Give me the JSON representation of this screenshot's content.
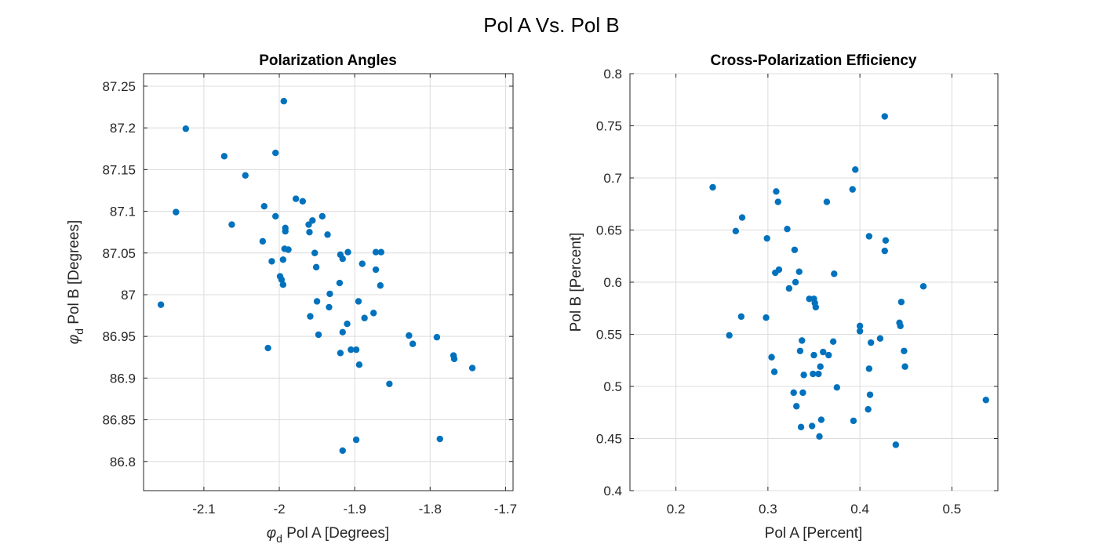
{
  "figure": {
    "title": "Pol A Vs. Pol B"
  },
  "colors": {
    "marker": "#0072BD",
    "grid": "#dcdcdc",
    "axis": "#262626"
  },
  "chart_data": [
    {
      "type": "scatter",
      "title": "Polarization Angles",
      "xlabel": {
        "symbol": "φ",
        "sub": "d",
        "text": " Pol A [Degrees]"
      },
      "ylabel": {
        "symbol": "φ",
        "sub": "d",
        "text": " Pol B [Degrees]"
      },
      "xlim": [
        -2.18,
        -1.69
      ],
      "ylim": [
        86.765,
        87.265
      ],
      "xticks": [
        -2.1,
        -2.0,
        -1.9,
        -1.8,
        -1.7
      ],
      "xtick_labels": [
        "-2.1",
        "-2",
        "-1.9",
        "-1.8",
        "-1.7"
      ],
      "yticks": [
        86.8,
        86.85,
        86.9,
        86.95,
        87.0,
        87.05,
        87.1,
        87.15,
        87.2,
        87.25
      ],
      "ytick_labels": [
        "86.8",
        "86.85",
        "86.9",
        "86.95",
        "87",
        "87.05",
        "87.1",
        "87.15",
        "87.2",
        "87.25"
      ],
      "grid": true,
      "points": [
        [
          -2.157,
          86.988
        ],
        [
          -2.124,
          87.199
        ],
        [
          -2.137,
          87.099
        ],
        [
          -2.073,
          87.166
        ],
        [
          -2.063,
          87.084
        ],
        [
          -2.045,
          87.143
        ],
        [
          -2.02,
          87.106
        ],
        [
          -2.022,
          87.064
        ],
        [
          -2.015,
          86.936
        ],
        [
          -2.01,
          87.04
        ],
        [
          -2.005,
          87.17
        ],
        [
          -2.005,
          87.094
        ],
        [
          -1.999,
          87.022
        ],
        [
          -1.997,
          87.018
        ],
        [
          -1.995,
          87.042
        ],
        [
          -1.995,
          87.012
        ],
        [
          -1.994,
          87.232
        ],
        [
          -1.993,
          87.055
        ],
        [
          -1.992,
          87.08
        ],
        [
          -1.992,
          87.076
        ],
        [
          -1.988,
          87.054
        ],
        [
          -1.978,
          87.115
        ],
        [
          -1.969,
          87.112
        ],
        [
          -1.961,
          87.084
        ],
        [
          -1.96,
          87.075
        ],
        [
          -1.956,
          87.089
        ],
        [
          -1.959,
          86.974
        ],
        [
          -1.953,
          87.05
        ],
        [
          -1.951,
          87.033
        ],
        [
          -1.95,
          86.992
        ],
        [
          -1.948,
          86.952
        ],
        [
          -1.943,
          87.094
        ],
        [
          -1.936,
          87.072
        ],
        [
          -1.934,
          86.985
        ],
        [
          -1.933,
          87.001
        ],
        [
          -1.92,
          87.014
        ],
        [
          -1.919,
          86.93
        ],
        [
          -1.919,
          87.048
        ],
        [
          -1.916,
          86.955
        ],
        [
          -1.916,
          87.043
        ],
        [
          -1.91,
          86.965
        ],
        [
          -1.909,
          87.051
        ],
        [
          -1.905,
          86.934
        ],
        [
          -1.898,
          86.934
        ],
        [
          -1.898,
          86.826
        ],
        [
          -1.895,
          86.992
        ],
        [
          -1.894,
          86.916
        ],
        [
          -1.89,
          87.037
        ],
        [
          -1.887,
          86.972
        ],
        [
          -1.916,
          86.813
        ],
        [
          -1.875,
          86.978
        ],
        [
          -1.872,
          87.03
        ],
        [
          -1.872,
          87.051
        ],
        [
          -1.865,
          87.051
        ],
        [
          -1.866,
          87.011
        ],
        [
          -1.854,
          86.893
        ],
        [
          -1.828,
          86.951
        ],
        [
          -1.823,
          86.941
        ],
        [
          -1.791,
          86.949
        ],
        [
          -1.787,
          86.827
        ],
        [
          -1.769,
          86.927
        ],
        [
          -1.768,
          86.923
        ],
        [
          -1.744,
          86.912
        ]
      ]
    },
    {
      "type": "scatter",
      "title": "Cross-Polarization Efficiency",
      "xlabel": {
        "text": "Pol A [Percent]"
      },
      "ylabel": {
        "text": "Pol B [Percent]"
      },
      "xlim": [
        0.15,
        0.55
      ],
      "ylim": [
        0.4,
        0.8
      ],
      "xticks": [
        0.2,
        0.3,
        0.4,
        0.5
      ],
      "xtick_labels": [
        "0.2",
        "0.3",
        "0.4",
        "0.5"
      ],
      "yticks": [
        0.4,
        0.45,
        0.5,
        0.55,
        0.6,
        0.65,
        0.7,
        0.75,
        0.8
      ],
      "ytick_labels": [
        "0.4",
        "0.45",
        "0.5",
        "0.55",
        "0.6",
        "0.65",
        "0.7",
        "0.75",
        "0.8"
      ],
      "grid": true,
      "points": [
        [
          0.24,
          0.691
        ],
        [
          0.258,
          0.549
        ],
        [
          0.265,
          0.649
        ],
        [
          0.271,
          0.567
        ],
        [
          0.272,
          0.662
        ],
        [
          0.298,
          0.566
        ],
        [
          0.299,
          0.642
        ],
        [
          0.304,
          0.528
        ],
        [
          0.307,
          0.514
        ],
        [
          0.308,
          0.609
        ],
        [
          0.309,
          0.687
        ],
        [
          0.311,
          0.677
        ],
        [
          0.312,
          0.612
        ],
        [
          0.321,
          0.651
        ],
        [
          0.323,
          0.594
        ],
        [
          0.328,
          0.494
        ],
        [
          0.329,
          0.631
        ],
        [
          0.33,
          0.6
        ],
        [
          0.331,
          0.481
        ],
        [
          0.334,
          0.61
        ],
        [
          0.335,
          0.534
        ],
        [
          0.336,
          0.461
        ],
        [
          0.337,
          0.544
        ],
        [
          0.338,
          0.494
        ],
        [
          0.339,
          0.511
        ],
        [
          0.345,
          0.584
        ],
        [
          0.348,
          0.462
        ],
        [
          0.349,
          0.512
        ],
        [
          0.35,
          0.584
        ],
        [
          0.35,
          0.53
        ],
        [
          0.351,
          0.58
        ],
        [
          0.352,
          0.576
        ],
        [
          0.355,
          0.512
        ],
        [
          0.356,
          0.452
        ],
        [
          0.357,
          0.519
        ],
        [
          0.358,
          0.468
        ],
        [
          0.36,
          0.533
        ],
        [
          0.364,
          0.677
        ],
        [
          0.366,
          0.53
        ],
        [
          0.371,
          0.543
        ],
        [
          0.372,
          0.608
        ],
        [
          0.375,
          0.499
        ],
        [
          0.392,
          0.689
        ],
        [
          0.393,
          0.467
        ],
        [
          0.395,
          0.708
        ],
        [
          0.4,
          0.553
        ],
        [
          0.4,
          0.558
        ],
        [
          0.409,
          0.478
        ],
        [
          0.41,
          0.517
        ],
        [
          0.41,
          0.644
        ],
        [
          0.411,
          0.492
        ],
        [
          0.412,
          0.542
        ],
        [
          0.422,
          0.546
        ],
        [
          0.427,
          0.759
        ],
        [
          0.427,
          0.63
        ],
        [
          0.428,
          0.64
        ],
        [
          0.439,
          0.444
        ],
        [
          0.443,
          0.561
        ],
        [
          0.444,
          0.558
        ],
        [
          0.445,
          0.581
        ],
        [
          0.448,
          0.534
        ],
        [
          0.449,
          0.519
        ],
        [
          0.469,
          0.596
        ],
        [
          0.537,
          0.487
        ]
      ]
    }
  ]
}
